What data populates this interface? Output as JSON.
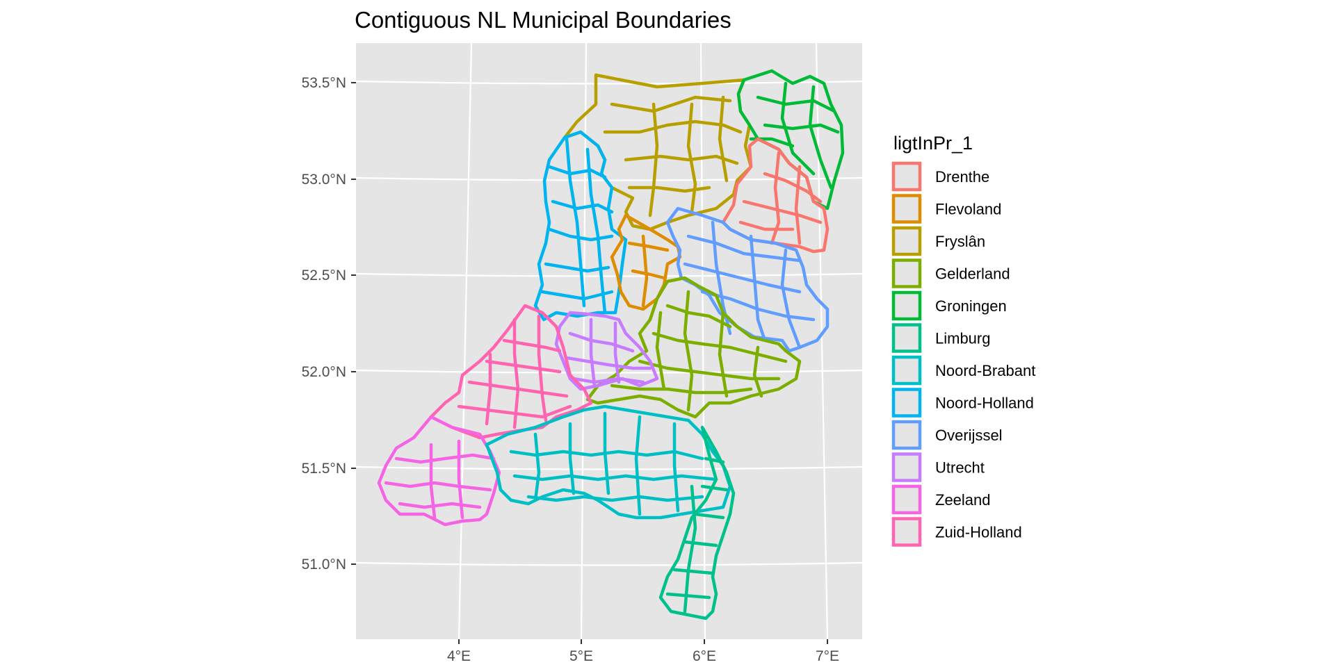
{
  "title": "Contiguous NL Municipal Boundaries",
  "axes": {
    "x_ticks": [
      "4°E",
      "5°E",
      "6°E",
      "7°E"
    ],
    "y_ticks": [
      "53.5°N",
      "53.0°N",
      "52.5°N",
      "52.0°N",
      "51.5°N",
      "51.0°N"
    ]
  },
  "legend": {
    "title": "ligtInPr_1",
    "placement": "right",
    "items": [
      {
        "label": "Drenthe",
        "color": "#F8766D"
      },
      {
        "label": "Flevoland",
        "color": "#DE8C00"
      },
      {
        "label": "Fryslân",
        "color": "#B79F00"
      },
      {
        "label": "Gelderland",
        "color": "#7CAE00"
      },
      {
        "label": "Groningen",
        "color": "#00BA38"
      },
      {
        "label": "Limburg",
        "color": "#00C08B"
      },
      {
        "label": "Noord-Brabant",
        "color": "#00BFC4"
      },
      {
        "label": "Noord-Holland",
        "color": "#00B4F0"
      },
      {
        "label": "Overijssel",
        "color": "#619CFF"
      },
      {
        "label": "Utrecht",
        "color": "#C77CFF"
      },
      {
        "label": "Zeeland",
        "color": "#F564E3"
      },
      {
        "label": "Zuid-Holland",
        "color": "#FF64B0"
      }
    ]
  },
  "panel_background": "#e5e5e5"
}
